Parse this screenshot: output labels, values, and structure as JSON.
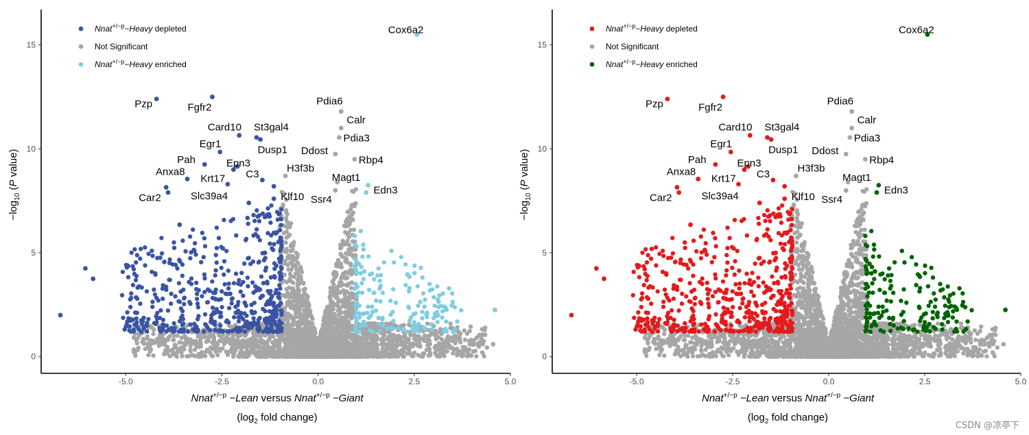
{
  "chart_data": [
    {
      "type": "scatter",
      "subtype": "volcano",
      "xlim": [
        -7.2,
        5.0
      ],
      "ylim": [
        -0.8,
        16.7
      ],
      "x_ticks": [
        -5.0,
        -2.5,
        0.0,
        2.5,
        5.0
      ],
      "x_tick_labels": [
        "-5.0",
        "-2.5",
        "0.0",
        "2.5",
        "5.0"
      ],
      "y_ticks": [
        0,
        5,
        10,
        15
      ],
      "y_tick_labels": [
        "0",
        "5",
        "10",
        "15"
      ],
      "xlabel": {
        "g1": "Nnat",
        "sup": "+/−p",
        "lean": "−Lean",
        "versus": "versus",
        "g2": "Nnat",
        "sup2": "+/−p",
        "giant": "−Giant"
      },
      "xlabel_sub": {
        "pre": "(log",
        "sub": "2",
        "post": " fold change)"
      },
      "ylabel": {
        "pre": "−log",
        "sub": "10",
        "mid": " (",
        "p": "P",
        "post": " value)"
      },
      "legend": {
        "position": "top-left",
        "items": [
          {
            "gene": "Nnat",
            "sup": "+/−p",
            "suffix": "−Heavy",
            "text": "depleted"
          },
          {
            "text": "Not Significant"
          },
          {
            "gene": "Nnat",
            "sup": "+/−p",
            "suffix": "−Heavy",
            "text": "enriched"
          }
        ]
      },
      "colors": {
        "depleted": "#3a54a4",
        "ns": "#a6a6a6",
        "enriched": "#7fcde0"
      },
      "grid": false,
      "labeled_points": [
        {
          "name": "Cox6a2",
          "x": 2.57,
          "y": 15.5,
          "group": "enriched"
        },
        {
          "name": "Pzp",
          "x": -4.2,
          "y": 12.4,
          "group": "depleted"
        },
        {
          "name": "Fgfr2",
          "x": -2.75,
          "y": 12.5,
          "group": "depleted"
        },
        {
          "name": "Pdia6",
          "x": 0.6,
          "y": 11.8,
          "group": "ns"
        },
        {
          "name": "Calr",
          "x": 0.6,
          "y": 11.0,
          "group": "ns"
        },
        {
          "name": "Card10",
          "x": -2.05,
          "y": 10.65,
          "group": "depleted"
        },
        {
          "name": "St3gal4",
          "x": -1.6,
          "y": 10.55,
          "group": "depleted"
        },
        {
          "name": "Pdia3",
          "x": 0.55,
          "y": 10.55,
          "group": "ns"
        },
        {
          "name": "Dusp1",
          "x": -1.5,
          "y": 10.45,
          "group": "depleted"
        },
        {
          "name": "Egr1",
          "x": -2.55,
          "y": 9.85,
          "group": "depleted"
        },
        {
          "name": "Ddost",
          "x": 0.45,
          "y": 9.75,
          "group": "ns"
        },
        {
          "name": "Rbp4",
          "x": 0.95,
          "y": 9.5,
          "group": "ns"
        },
        {
          "name": "Pah",
          "x": -2.95,
          "y": 9.25,
          "group": "depleted"
        },
        {
          "name": "Epn3",
          "x": -2.1,
          "y": 9.15,
          "group": "depleted"
        },
        {
          "name": "Krt17",
          "x": -2.2,
          "y": 9.0,
          "group": "depleted"
        },
        {
          "name": "Anxa8",
          "x": -3.4,
          "y": 8.55,
          "group": "depleted"
        },
        {
          "name": "C3",
          "x": -1.45,
          "y": 8.5,
          "group": "depleted"
        },
        {
          "name": "H3f3b",
          "x": -0.85,
          "y": 8.7,
          "group": "ns"
        },
        {
          "name": "Magt1",
          "x": 0.5,
          "y": 8.4,
          "group": "ns"
        },
        {
          "name": "Slc39a4",
          "x": -2.35,
          "y": 8.3,
          "group": "depleted"
        },
        {
          "name": "Klf10",
          "x": -1.15,
          "y": 8.2,
          "group": "depleted"
        },
        {
          "name": "Car2",
          "x": -3.95,
          "y": 8.15,
          "group": "depleted"
        },
        {
          "name": "Edn3",
          "x": 1.3,
          "y": 8.25,
          "group": "enriched"
        },
        {
          "name": "Ssr4",
          "x": 0.45,
          "y": 8.0,
          "group": "ns"
        }
      ],
      "outlier_points": [
        {
          "x": -6.7,
          "y": 2.0,
          "group": "depleted"
        },
        {
          "x": -6.05,
          "y": 4.25,
          "group": "depleted"
        },
        {
          "x": -5.85,
          "y": 3.75,
          "group": "depleted"
        },
        {
          "x": -3.9,
          "y": 7.9,
          "group": "depleted"
        },
        {
          "x": -3.6,
          "y": 6.35,
          "group": "depleted"
        },
        {
          "x": -1.8,
          "y": 7.4,
          "group": "depleted"
        },
        {
          "x": -1.15,
          "y": 7.6,
          "group": "depleted"
        },
        {
          "x": 1.25,
          "y": 7.9,
          "group": "enriched"
        },
        {
          "x": 4.6,
          "y": 2.25,
          "group": "enriched"
        },
        {
          "x": 4.55,
          "y": 0.6,
          "group": "ns"
        },
        {
          "x": 3.7,
          "y": 1.1,
          "group": "ns"
        }
      ],
      "cloud_summary": {
        "depleted": "many points between x -5.2 and -0.9, y 1.2 to 7.4",
        "ns": "dense V-shaped cloud centered at x 0, y 0 to 8.5",
        "enriched": "points between x 0.9 and 3.8, y 1.2 to 6.3"
      }
    },
    {
      "type": "scatter",
      "subtype": "volcano",
      "xlim": [
        -7.2,
        5.0
      ],
      "ylim": [
        -0.8,
        16.7
      ],
      "x_ticks": [
        -5.0,
        -2.5,
        0.0,
        2.5,
        5.0
      ],
      "x_tick_labels": [
        "-5.0",
        "-2.5",
        "0.0",
        "2.5",
        "5.0"
      ],
      "y_ticks": [
        0,
        5,
        10,
        15
      ],
      "y_tick_labels": [
        "0",
        "5",
        "10",
        "15"
      ],
      "xlabel": {
        "g1": "Nnat",
        "sup": "+/−p",
        "lean": "−Lean",
        "versus": "versus",
        "g2": "Nnat",
        "sup2": "+/−p",
        "giant": "−Giant"
      },
      "xlabel_sub": {
        "pre": "(log",
        "sub": "2",
        "post": " fold change)"
      },
      "ylabel": {
        "pre": "−log",
        "sub": "10",
        "mid": " (",
        "p": "P",
        "post": " value)"
      },
      "legend": {
        "position": "top-left",
        "items": [
          {
            "gene": "Nnat",
            "sup": "+/−p",
            "suffix": "−Heavy",
            "text": "depleted"
          },
          {
            "text": "Not Significant"
          },
          {
            "gene": "Nnat",
            "sup": "+/−p",
            "suffix": "−Heavy",
            "text": "enriched"
          }
        ]
      },
      "colors": {
        "depleted": "#e41a1c",
        "ns": "#a6a6a6",
        "enriched": "#006400"
      },
      "grid": false,
      "labeled_points": "same as first panel",
      "cloud_summary": "same distribution as first panel"
    }
  ],
  "watermark": "CSDN @凉亭下"
}
